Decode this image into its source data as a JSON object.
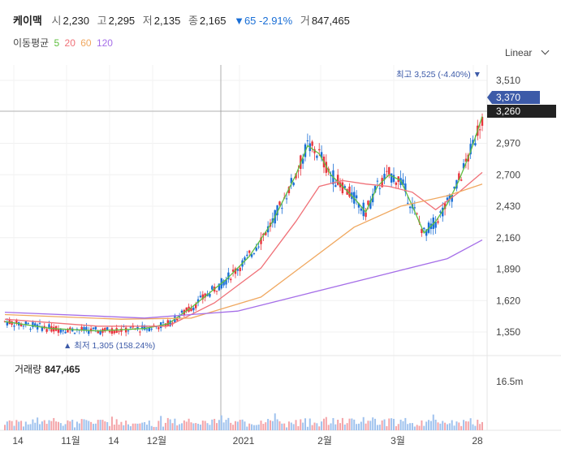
{
  "header": {
    "name": "케이맥",
    "open_label": "시",
    "open": "2,230",
    "high_label": "고",
    "high": "2,295",
    "low_label": "저",
    "low": "2,135",
    "close_label": "종",
    "close": "2,165",
    "change": "▼65 -2.91%",
    "volume_label": "거",
    "volume": "847,465"
  },
  "ma_legend": {
    "label": "이동평균",
    "items": [
      "5",
      "20",
      "60",
      "120"
    ]
  },
  "scale_selector": {
    "label": "Linear",
    "icon": "chevron-down-icon"
  },
  "volume_panel": {
    "label": "거래량",
    "value": "847,465",
    "axis_label": "16.5m"
  },
  "colors": {
    "up": "#e8333c",
    "down": "#1a6fd6",
    "ma5": "#5fbf3f",
    "ma20": "#f07178",
    "ma60": "#f0a860",
    "ma120": "#a56ee8",
    "badge": "#3c5aa8"
  },
  "chart_data": {
    "type": "candlestick",
    "x_ticks": [
      "14",
      "11월",
      "14",
      "12월",
      "2021",
      "2월",
      "3월",
      "28"
    ],
    "y_ticks": [
      1350,
      1620,
      1890,
      2160,
      2430,
      2700,
      2970,
      3510
    ],
    "ylim": [
      1200,
      3600
    ],
    "price_labels": {
      "current": "3,370",
      "crosshair": "3,260"
    },
    "annotations": {
      "max": "최고 3,525 (-4.40%)",
      "min": "최저 1,305 (158.24%)"
    },
    "series": [
      {
        "name": "5",
        "approx_path": [
          [
            0,
            1440
          ],
          [
            20,
            1380
          ],
          [
            40,
            1360
          ],
          [
            60,
            1380
          ],
          [
            70,
            1420
          ],
          [
            80,
            1560
          ],
          [
            95,
            1800
          ],
          [
            105,
            2000
          ],
          [
            115,
            2300
          ],
          [
            125,
            2700
          ],
          [
            130,
            2950
          ],
          [
            135,
            2880
          ],
          [
            140,
            2700
          ],
          [
            145,
            2600
          ],
          [
            150,
            2500
          ],
          [
            155,
            2380
          ],
          [
            160,
            2600
          ],
          [
            165,
            2700
          ],
          [
            170,
            2650
          ],
          [
            175,
            2430
          ],
          [
            180,
            2200
          ],
          [
            185,
            2300
          ],
          [
            190,
            2450
          ],
          [
            195,
            2650
          ],
          [
            200,
            2900
          ],
          [
            205,
            3200
          ]
        ]
      },
      {
        "name": "20",
        "approx_path": [
          [
            0,
            1460
          ],
          [
            40,
            1400
          ],
          [
            70,
            1400
          ],
          [
            90,
            1600
          ],
          [
            110,
            1900
          ],
          [
            125,
            2300
          ],
          [
            135,
            2600
          ],
          [
            145,
            2650
          ],
          [
            155,
            2620
          ],
          [
            165,
            2600
          ],
          [
            175,
            2550
          ],
          [
            185,
            2400
          ],
          [
            195,
            2550
          ],
          [
            205,
            2720
          ]
        ]
      },
      {
        "name": "60",
        "approx_path": [
          [
            0,
            1500
          ],
          [
            50,
            1460
          ],
          [
            80,
            1470
          ],
          [
            110,
            1650
          ],
          [
            130,
            1950
          ],
          [
            150,
            2250
          ],
          [
            170,
            2430
          ],
          [
            190,
            2520
          ],
          [
            205,
            2620
          ]
        ]
      },
      {
        "name": "120",
        "approx_path": [
          [
            0,
            1520
          ],
          [
            60,
            1470
          ],
          [
            100,
            1530
          ],
          [
            130,
            1680
          ],
          [
            160,
            1830
          ],
          [
            190,
            1980
          ],
          [
            205,
            2140
          ]
        ]
      }
    ]
  }
}
